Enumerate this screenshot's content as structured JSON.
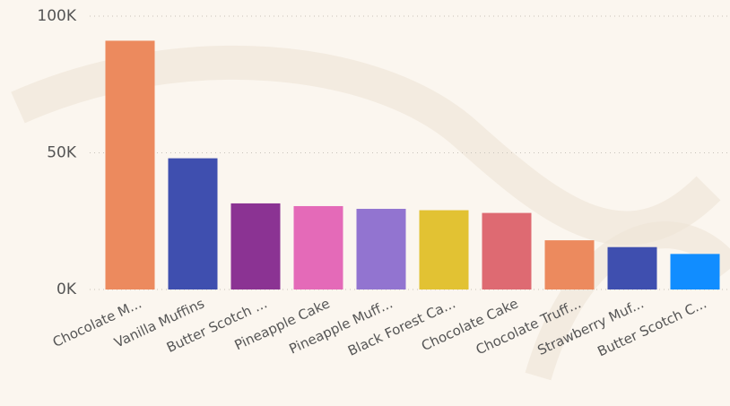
{
  "chart_data": {
    "type": "bar",
    "categories": [
      "Chocolate M...",
      "Vanilla Muffins",
      "Butter Scotch ...",
      "Pineapple Cake",
      "Pineapple Muff...",
      "Black Forest Ca...",
      "Chocolate Cake",
      "Chocolate Truff...",
      "Strawberry Muf...",
      "Butter Scotch C..."
    ],
    "values": [
      91000,
      48000,
      31500,
      30500,
      29500,
      29000,
      28000,
      18000,
      15500,
      13000
    ],
    "colors": [
      "#EC8A5E",
      "#3F4FAF",
      "#8B3393",
      "#E46AB8",
      "#9274D0",
      "#E2C233",
      "#DE6A72",
      "#EC8A5E",
      "#3F4FAF",
      "#118DFF"
    ],
    "ylim": [
      0,
      100000
    ],
    "yticks": [
      {
        "value": 0,
        "label": "0K"
      },
      {
        "value": 50000,
        "label": "50K"
      },
      {
        "value": 100000,
        "label": "100K"
      }
    ],
    "grid": true
  }
}
